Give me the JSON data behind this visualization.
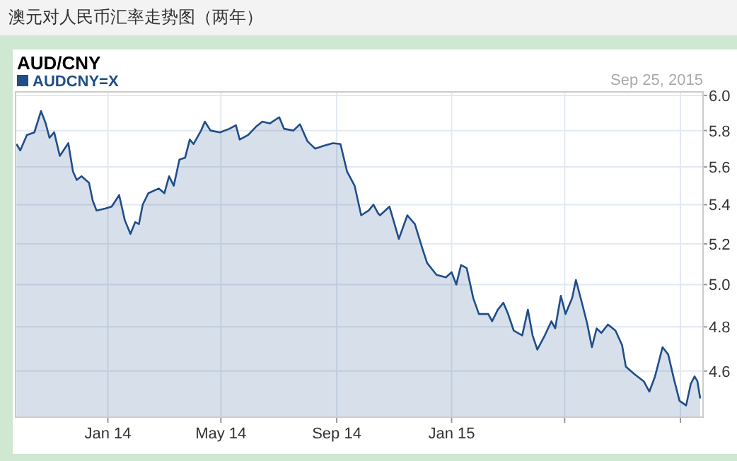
{
  "chart_data": {
    "type": "area",
    "title": "澳元对人民币汇率走势图（两年）",
    "subtitle": "AUD/CNY",
    "annotations": [
      "Sep 25, 2015"
    ],
    "legend": "top left",
    "grid": true,
    "log": "y",
    "xlim": [
      "2013-09-25",
      "2015-09-25"
    ],
    "xticks": [
      {
        "value": "2014-01-01",
        "label": "Jan 14"
      },
      {
        "value": "2014-05-01",
        "label": "May 14"
      },
      {
        "value": "2014-09-01",
        "label": "Sep 14"
      },
      {
        "value": "2015-01-01",
        "label": "Jan 15"
      },
      {
        "value": "2015-05-01",
        "label": null
      },
      {
        "value": "2015-09-01",
        "label": null
      }
    ],
    "ylim": [
      4.4,
      6.02
    ],
    "yticks": [
      {
        "value": 4.6,
        "label": "4.6"
      },
      {
        "value": 4.8,
        "label": "4.8"
      },
      {
        "value": 5,
        "label": "5.0"
      },
      {
        "value": 5.2,
        "label": "5.2"
      },
      {
        "value": 5.4,
        "label": "5.4"
      },
      {
        "value": 5.6,
        "label": "5.6"
      },
      {
        "value": 5.8,
        "label": "5.8"
      },
      {
        "value": 6,
        "label": "6.0"
      }
    ],
    "x": [
      "2013-09-26",
      "2013-09-30",
      "2013-10-07",
      "2013-10-15",
      "2013-10-22",
      "2013-10-27",
      "2013-10-31",
      "2013-11-05",
      "2013-11-11",
      "2013-11-20",
      "2013-11-25",
      "2013-11-29",
      "2013-12-04",
      "2013-12-12",
      "2013-12-16",
      "2013-12-20",
      "2013-12-29",
      "2014-01-05",
      "2014-01-13",
      "2014-01-19",
      "2014-01-25",
      "2014-01-30",
      "2014-02-03",
      "2014-02-07",
      "2014-02-13",
      "2014-02-24",
      "2014-03-02",
      "2014-03-07",
      "2014-03-12",
      "2014-03-18",
      "2014-03-24",
      "2014-03-29",
      "2014-04-02",
      "2014-04-10",
      "2014-04-14",
      "2014-04-20",
      "2014-04-30",
      "2014-05-10",
      "2014-05-17",
      "2014-05-21",
      "2014-05-30",
      "2014-06-07",
      "2014-06-14",
      "2014-06-22",
      "2014-07-02",
      "2014-07-07",
      "2014-07-17",
      "2014-07-24",
      "2014-08-01",
      "2014-08-09",
      "2014-08-18",
      "2014-08-28",
      "2014-09-05",
      "2014-09-12",
      "2014-09-20",
      "2014-09-27",
      "2014-10-05",
      "2014-10-10",
      "2014-10-15",
      "2014-10-17",
      "2014-10-27",
      "2014-11-06",
      "2014-11-15",
      "2014-11-23",
      "2014-12-01",
      "2014-12-06",
      "2014-12-16",
      "2014-12-26",
      "2015-01-01",
      "2015-01-06",
      "2015-01-11",
      "2015-01-17",
      "2015-01-24",
      "2015-01-30",
      "2015-02-09",
      "2015-02-13",
      "2015-02-19",
      "2015-02-25",
      "2015-03-02",
      "2015-03-08",
      "2015-03-17",
      "2015-03-23",
      "2015-03-28",
      "2015-04-02",
      "2015-04-10",
      "2015-04-17",
      "2015-04-21",
      "2015-04-27",
      "2015-05-02",
      "2015-05-09",
      "2015-05-13",
      "2015-05-20",
      "2015-05-25",
      "2015-05-30",
      "2015-06-04",
      "2015-06-09",
      "2015-06-16",
      "2015-06-24",
      "2015-07-01",
      "2015-07-05",
      "2015-07-14",
      "2015-07-24",
      "2015-07-30",
      "2015-08-05",
      "2015-08-13",
      "2015-08-19",
      "2015-08-25",
      "2015-08-31",
      "2015-09-07",
      "2015-09-12",
      "2015-09-16",
      "2015-09-19",
      "2015-09-22"
    ],
    "series": [
      {
        "name": "AUDCNY=X",
        "color": "#1f4e89",
        "values": [
          5.725,
          5.69,
          5.775,
          5.79,
          5.91,
          5.84,
          5.76,
          5.79,
          5.66,
          5.73,
          5.575,
          5.53,
          5.55,
          5.515,
          5.42,
          5.37,
          5.38,
          5.39,
          5.45,
          5.32,
          5.25,
          5.31,
          5.3,
          5.4,
          5.46,
          5.485,
          5.46,
          5.55,
          5.5,
          5.64,
          5.65,
          5.75,
          5.725,
          5.8,
          5.85,
          5.8,
          5.79,
          5.81,
          5.83,
          5.75,
          5.775,
          5.82,
          5.85,
          5.84,
          5.875,
          5.81,
          5.8,
          5.835,
          5.74,
          5.7,
          5.715,
          5.73,
          5.725,
          5.575,
          5.5,
          5.345,
          5.37,
          5.4,
          5.355,
          5.345,
          5.39,
          5.225,
          5.345,
          5.3,
          5.176,
          5.105,
          5.047,
          5.035,
          5.06,
          5.0,
          5.095,
          5.08,
          4.935,
          4.86,
          4.86,
          4.826,
          4.88,
          4.913,
          4.86,
          4.783,
          4.761,
          4.88,
          4.761,
          4.696,
          4.761,
          4.826,
          4.793,
          4.946,
          4.86,
          4.935,
          5.022,
          4.902,
          4.815,
          4.707,
          4.793,
          4.772,
          4.811,
          4.783,
          4.717,
          4.62,
          4.587,
          4.555,
          4.51,
          4.576,
          4.707,
          4.674,
          4.566,
          4.47,
          4.45,
          4.544,
          4.576,
          4.555,
          4.48
        ]
      }
    ]
  }
}
